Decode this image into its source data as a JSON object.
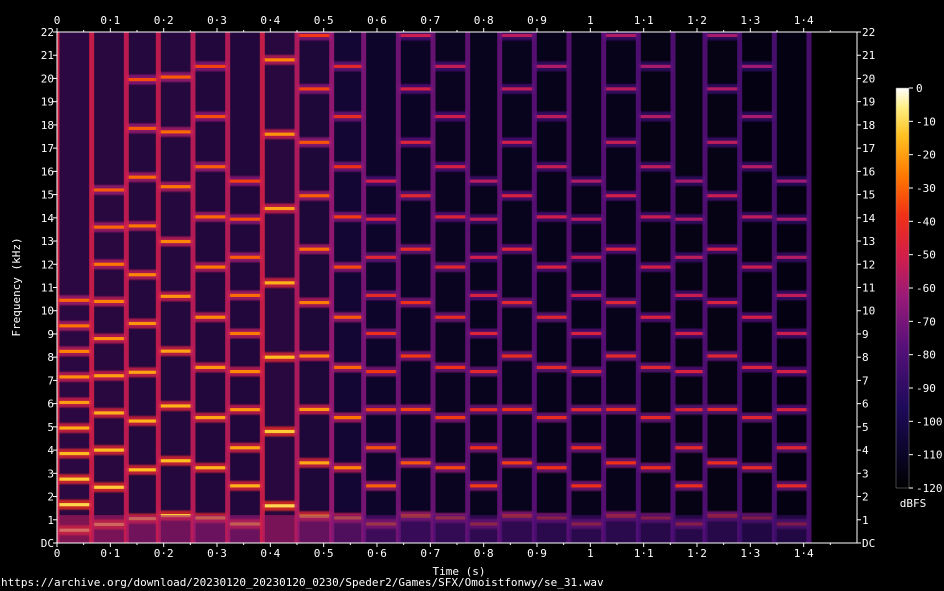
{
  "chart_data": {
    "type": "heatmap",
    "xlabel": "Time (s)",
    "ylabel": "Frequency (kHz)",
    "xlim": [
      0,
      1.5
    ],
    "ylim": [
      0,
      22
    ],
    "x_ticks": [
      "0",
      "0·1",
      "0·2",
      "0·3",
      "0·4",
      "0·5",
      "0·6",
      "0·7",
      "0·8",
      "0·9",
      "1",
      "1·1",
      "1·2",
      "1·3",
      "1·4"
    ],
    "y_ticks": [
      "DC",
      "1",
      "2",
      "3",
      "4",
      "5",
      "6",
      "7",
      "8",
      "9",
      "10",
      "11",
      "12",
      "13",
      "14",
      "15",
      "16",
      "17",
      "18",
      "19",
      "20",
      "21",
      "22"
    ],
    "colorbar": {
      "label": "dBFS",
      "range": [
        -120,
        0
      ],
      "ticks": [
        "0",
        "-10",
        "-20",
        "-30",
        "-40",
        "-50",
        "-60",
        "-70",
        "-80",
        "-90",
        "-100",
        "-110",
        "-120"
      ]
    },
    "segments": [
      {
        "t0": 0.0,
        "t1": 0.065,
        "f": 0.55,
        "db": -8
      },
      {
        "t0": 0.065,
        "t1": 0.13,
        "f": 0.8,
        "db": -10
      },
      {
        "t0": 0.13,
        "t1": 0.19,
        "f": 1.05,
        "db": -12
      },
      {
        "t0": 0.19,
        "t1": 0.255,
        "f": 1.18,
        "db": -12
      },
      {
        "t0": 0.255,
        "t1": 0.32,
        "f": 1.08,
        "db": -14
      },
      {
        "t0": 0.32,
        "t1": 0.385,
        "f": 0.82,
        "db": -14
      },
      {
        "t0": 0.385,
        "t1": 0.45,
        "f": 1.6,
        "db": -10
      },
      {
        "t0": 0.45,
        "t1": 0.515,
        "f": 1.15,
        "db": -16
      },
      {
        "t0": 0.515,
        "t1": 0.575,
        "f": 1.08,
        "db": -22
      },
      {
        "t0": 0.575,
        "t1": 0.64,
        "f": 0.82,
        "db": -28
      },
      {
        "t0": 0.64,
        "t1": 0.705,
        "f": 1.15,
        "db": -30
      },
      {
        "t0": 0.705,
        "t1": 0.77,
        "f": 1.08,
        "db": -32
      },
      {
        "t0": 0.77,
        "t1": 0.83,
        "f": 0.82,
        "db": -34
      },
      {
        "t0": 0.83,
        "t1": 0.895,
        "f": 1.15,
        "db": -34
      },
      {
        "t0": 0.895,
        "t1": 0.96,
        "f": 1.08,
        "db": -36
      },
      {
        "t0": 0.96,
        "t1": 1.025,
        "f": 0.82,
        "db": -36
      },
      {
        "t0": 1.025,
        "t1": 1.09,
        "f": 1.15,
        "db": -36
      },
      {
        "t0": 1.09,
        "t1": 1.155,
        "f": 1.08,
        "db": -38
      },
      {
        "t0": 1.155,
        "t1": 1.215,
        "f": 0.82,
        "db": -38
      },
      {
        "t0": 1.215,
        "t1": 1.28,
        "f": 1.15,
        "db": -38
      },
      {
        "t0": 1.28,
        "t1": 1.345,
        "f": 1.08,
        "db": -40
      },
      {
        "t0": 1.345,
        "t1": 1.41,
        "f": 0.82,
        "db": -40
      }
    ]
  },
  "source_url": "https://archive.org/download/20230120_20230120_0230/Speder2/Games/SFX/Omoistfonwy/se_31.wav"
}
